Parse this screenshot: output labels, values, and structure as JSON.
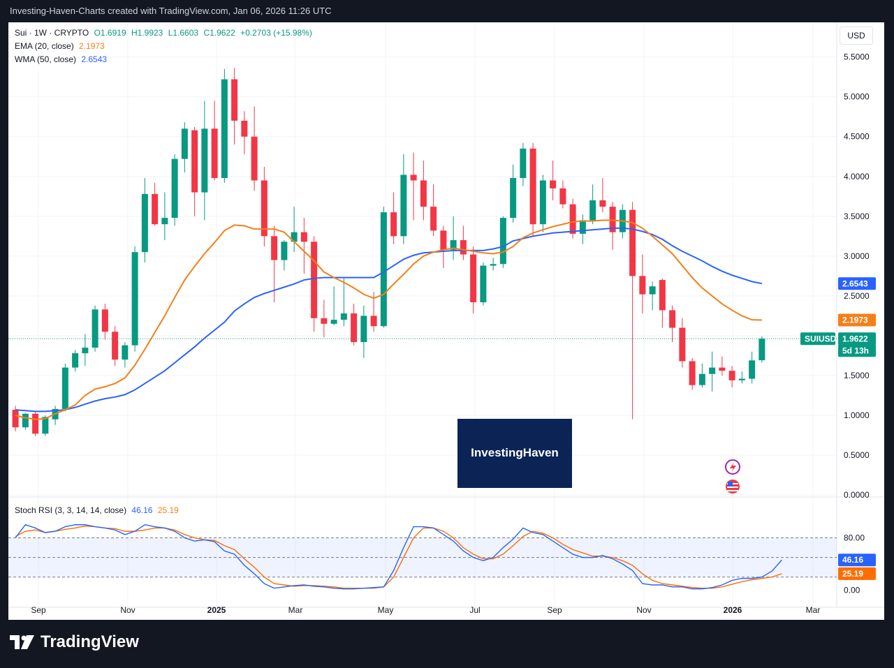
{
  "header": {
    "attribution": "Investing-Haven-Charts created with TradingView.com, Jan 06, 2026 11:26 UTC"
  },
  "legend": {
    "symbol": "Sui · 1W · CRYPTO",
    "open": "O1.6919",
    "high": "H1.9923",
    "low": "L1.6603",
    "close": "C1.9622",
    "change": "+0.2703 (+15.98%)",
    "ema_label": "EMA (20, close)",
    "ema_value": "2.1973",
    "wma_label": "WMA (50, close)",
    "wma_value": "2.6543",
    "stoch_label": "Stoch RSI (3, 3, 14, 14, close)",
    "stoch_k": "46.16",
    "stoch_d": "25.19"
  },
  "currency_button": "USD",
  "watermark": "InvestingHaven",
  "footer": {
    "brand": "TradingView"
  },
  "colors": {
    "up": "#089981",
    "down": "#f23645",
    "ema": "#f57f17",
    "wma": "#2962ff",
    "k": "#2962ff",
    "d": "#ff6d00",
    "logo_bg": "#0b2455"
  },
  "chart_data": {
    "type": "candlestick",
    "price_axis": {
      "ticks": [
        "0.0000",
        "0.5000",
        "1.0000",
        "1.5000",
        "2.0000",
        "2.5000",
        "3.0000",
        "3.5000",
        "4.0000",
        "4.5000",
        "5.0000",
        "5.5000"
      ],
      "ylim": [
        0,
        5.5
      ]
    },
    "price_badges": {
      "wma": "2.6543",
      "ema": "2.1973",
      "symbol": "SUIUSD",
      "last": "1.9622",
      "countdown": "5d 13h"
    },
    "time_axis": [
      "Sep",
      "Nov",
      "2025",
      "Mar",
      "May",
      "Jul",
      "Sep",
      "Nov",
      "2026",
      "Mar"
    ],
    "candles": [
      {
        "o": 1.07,
        "h": 1.12,
        "l": 0.8,
        "c": 0.85
      },
      {
        "o": 0.85,
        "h": 1.03,
        "l": 0.82,
        "c": 1.02
      },
      {
        "o": 1.02,
        "h": 1.05,
        "l": 0.74,
        "c": 0.77
      },
      {
        "o": 0.77,
        "h": 1.0,
        "l": 0.74,
        "c": 0.98
      },
      {
        "o": 0.95,
        "h": 1.12,
        "l": 0.88,
        "c": 1.08
      },
      {
        "o": 1.08,
        "h": 1.65,
        "l": 1.05,
        "c": 1.6
      },
      {
        "o": 1.6,
        "h": 1.82,
        "l": 1.55,
        "c": 1.78
      },
      {
        "o": 1.78,
        "h": 2.02,
        "l": 1.62,
        "c": 1.85
      },
      {
        "o": 1.85,
        "h": 2.38,
        "l": 1.8,
        "c": 2.33
      },
      {
        "o": 2.33,
        "h": 2.4,
        "l": 1.95,
        "c": 2.05
      },
      {
        "o": 2.05,
        "h": 2.12,
        "l": 1.62,
        "c": 1.7
      },
      {
        "o": 1.7,
        "h": 1.92,
        "l": 1.6,
        "c": 1.88
      },
      {
        "o": 1.88,
        "h": 3.12,
        "l": 1.8,
        "c": 3.05
      },
      {
        "o": 3.05,
        "h": 3.98,
        "l": 2.92,
        "c": 3.78
      },
      {
        "o": 3.78,
        "h": 3.92,
        "l": 3.38,
        "c": 3.4
      },
      {
        "o": 3.4,
        "h": 3.8,
        "l": 3.2,
        "c": 3.48
      },
      {
        "o": 3.48,
        "h": 4.28,
        "l": 3.38,
        "c": 4.22
      },
      {
        "o": 4.22,
        "h": 4.68,
        "l": 4.05,
        "c": 4.6
      },
      {
        "o": 4.58,
        "h": 4.62,
        "l": 3.5,
        "c": 3.8
      },
      {
        "o": 3.8,
        "h": 4.95,
        "l": 3.45,
        "c": 4.6
      },
      {
        "o": 4.6,
        "h": 4.95,
        "l": 3.95,
        "c": 3.98
      },
      {
        "o": 3.98,
        "h": 5.35,
        "l": 3.92,
        "c": 5.22
      },
      {
        "o": 5.22,
        "h": 5.36,
        "l": 4.4,
        "c": 4.7
      },
      {
        "o": 4.7,
        "h": 4.82,
        "l": 4.28,
        "c": 4.5
      },
      {
        "o": 4.5,
        "h": 4.88,
        "l": 3.82,
        "c": 3.95
      },
      {
        "o": 3.95,
        "h": 4.12,
        "l": 3.12,
        "c": 3.25
      },
      {
        "o": 3.25,
        "h": 3.38,
        "l": 2.42,
        "c": 2.95
      },
      {
        "o": 2.95,
        "h": 3.2,
        "l": 2.82,
        "c": 3.18
      },
      {
        "o": 3.18,
        "h": 3.62,
        "l": 3.05,
        "c": 3.3
      },
      {
        "o": 3.3,
        "h": 3.48,
        "l": 2.78,
        "c": 3.18
      },
      {
        "o": 3.18,
        "h": 3.25,
        "l": 2.05,
        "c": 2.22
      },
      {
        "o": 2.22,
        "h": 2.45,
        "l": 1.98,
        "c": 2.15
      },
      {
        "o": 2.15,
        "h": 2.62,
        "l": 2.13,
        "c": 2.2
      },
      {
        "o": 2.2,
        "h": 2.72,
        "l": 2.12,
        "c": 2.28
      },
      {
        "o": 2.28,
        "h": 2.4,
        "l": 1.88,
        "c": 1.92
      },
      {
        "o": 1.92,
        "h": 2.38,
        "l": 1.72,
        "c": 2.25
      },
      {
        "o": 2.25,
        "h": 2.55,
        "l": 2.05,
        "c": 2.12
      },
      {
        "o": 2.12,
        "h": 3.62,
        "l": 2.1,
        "c": 3.55
      },
      {
        "o": 3.55,
        "h": 3.8,
        "l": 3.15,
        "c": 3.25
      },
      {
        "o": 3.25,
        "h": 4.28,
        "l": 3.15,
        "c": 4.02
      },
      {
        "o": 4.02,
        "h": 4.3,
        "l": 3.45,
        "c": 3.95
      },
      {
        "o": 3.95,
        "h": 4.2,
        "l": 3.45,
        "c": 3.62
      },
      {
        "o": 3.62,
        "h": 3.9,
        "l": 3.25,
        "c": 3.32
      },
      {
        "o": 3.32,
        "h": 3.38,
        "l": 2.85,
        "c": 3.08
      },
      {
        "o": 3.08,
        "h": 3.5,
        "l": 2.95,
        "c": 3.2
      },
      {
        "o": 3.2,
        "h": 3.38,
        "l": 2.95,
        "c": 3.02
      },
      {
        "o": 3.02,
        "h": 3.12,
        "l": 2.28,
        "c": 2.42
      },
      {
        "o": 2.42,
        "h": 2.92,
        "l": 2.38,
        "c": 2.88
      },
      {
        "o": 2.88,
        "h": 2.98,
        "l": 2.82,
        "c": 2.9
      },
      {
        "o": 2.9,
        "h": 3.5,
        "l": 2.85,
        "c": 3.48
      },
      {
        "o": 3.48,
        "h": 4.15,
        "l": 3.42,
        "c": 3.98
      },
      {
        "o": 3.98,
        "h": 4.42,
        "l": 3.88,
        "c": 4.35
      },
      {
        "o": 4.35,
        "h": 4.42,
        "l": 3.25,
        "c": 3.4
      },
      {
        "o": 3.4,
        "h": 4.02,
        "l": 3.3,
        "c": 3.95
      },
      {
        "o": 3.95,
        "h": 4.2,
        "l": 3.7,
        "c": 3.85
      },
      {
        "o": 3.85,
        "h": 3.95,
        "l": 3.6,
        "c": 3.65
      },
      {
        "o": 3.65,
        "h": 3.72,
        "l": 3.22,
        "c": 3.28
      },
      {
        "o": 3.28,
        "h": 3.52,
        "l": 3.15,
        "c": 3.45
      },
      {
        "o": 3.45,
        "h": 3.9,
        "l": 3.4,
        "c": 3.7
      },
      {
        "o": 3.7,
        "h": 3.98,
        "l": 3.55,
        "c": 3.62
      },
      {
        "o": 3.62,
        "h": 3.68,
        "l": 3.08,
        "c": 3.3
      },
      {
        "o": 3.3,
        "h": 3.65,
        "l": 3.22,
        "c": 3.58
      },
      {
        "o": 3.58,
        "h": 3.68,
        "l": 0.95,
        "c": 2.75
      },
      {
        "o": 2.75,
        "h": 3.02,
        "l": 2.28,
        "c": 2.52
      },
      {
        "o": 2.52,
        "h": 2.68,
        "l": 2.32,
        "c": 2.62
      },
      {
        "o": 2.7,
        "h": 2.72,
        "l": 2.1,
        "c": 2.32
      },
      {
        "o": 2.32,
        "h": 2.38,
        "l": 1.92,
        "c": 2.1
      },
      {
        "o": 2.1,
        "h": 2.22,
        "l": 1.6,
        "c": 1.68
      },
      {
        "o": 1.68,
        "h": 1.72,
        "l": 1.32,
        "c": 1.38
      },
      {
        "o": 1.38,
        "h": 1.65,
        "l": 1.35,
        "c": 1.52
      },
      {
        "o": 1.52,
        "h": 1.8,
        "l": 1.3,
        "c": 1.6
      },
      {
        "o": 1.6,
        "h": 1.74,
        "l": 1.5,
        "c": 1.56
      },
      {
        "o": 1.56,
        "h": 1.62,
        "l": 1.35,
        "c": 1.44
      },
      {
        "o": 1.44,
        "h": 1.55,
        "l": 1.4,
        "c": 1.46
      },
      {
        "o": 1.46,
        "h": 1.8,
        "l": 1.4,
        "c": 1.69
      },
      {
        "o": 1.6919,
        "h": 1.9923,
        "l": 1.6603,
        "c": 1.9622
      }
    ],
    "ema": [
      1.0,
      0.97,
      0.95,
      0.96,
      1.02,
      1.07,
      1.13,
      1.25,
      1.33,
      1.36,
      1.4,
      1.47,
      1.63,
      1.83,
      2.04,
      2.25,
      2.48,
      2.7,
      2.87,
      3.03,
      3.17,
      3.32,
      3.39,
      3.38,
      3.34,
      3.34,
      3.34,
      3.3,
      3.18,
      3.06,
      2.94,
      2.8,
      2.73,
      2.67,
      2.6,
      2.52,
      2.47,
      2.52,
      2.65,
      2.77,
      2.9,
      3.0,
      3.05,
      3.08,
      3.1,
      3.08,
      3.06,
      3.04,
      3.03,
      3.05,
      3.12,
      3.23,
      3.29,
      3.33,
      3.37,
      3.4,
      3.43,
      3.44,
      3.44,
      3.45,
      3.45,
      3.44,
      3.42,
      3.35,
      3.25,
      3.14,
      3.03,
      2.88,
      2.73,
      2.6,
      2.5,
      2.4,
      2.32,
      2.25,
      2.2,
      2.1973
    ],
    "wma": [
      1.07,
      1.06,
      1.05,
      1.05,
      1.06,
      1.07,
      1.1,
      1.14,
      1.18,
      1.21,
      1.23,
      1.26,
      1.32,
      1.4,
      1.48,
      1.56,
      1.66,
      1.76,
      1.86,
      1.97,
      2.07,
      2.17,
      2.31,
      2.4,
      2.48,
      2.53,
      2.57,
      2.61,
      2.65,
      2.7,
      2.72,
      2.73,
      2.73,
      2.73,
      2.73,
      2.73,
      2.73,
      2.8,
      2.88,
      2.96,
      3.01,
      3.04,
      3.05,
      3.06,
      3.07,
      3.07,
      3.07,
      3.07,
      3.09,
      3.12,
      3.19,
      3.22,
      3.25,
      3.27,
      3.29,
      3.3,
      3.31,
      3.32,
      3.33,
      3.34,
      3.35,
      3.35,
      3.34,
      3.31,
      3.27,
      3.21,
      3.13,
      3.06,
      3.0,
      2.94,
      2.87,
      2.81,
      2.76,
      2.72,
      2.68,
      2.6543
    ],
    "stoch_rsi": {
      "axis": [
        "0.00",
        "20.00",
        "80.00"
      ],
      "k_value": "46.16",
      "d_value": "25.19",
      "k": [
        80,
        100,
        95,
        88,
        90,
        97,
        100,
        100,
        97,
        95,
        92,
        85,
        90,
        100,
        97,
        95,
        90,
        80,
        75,
        77,
        74,
        60,
        55,
        38,
        25,
        10,
        3,
        5,
        7,
        8,
        6,
        5,
        3,
        2,
        2,
        3,
        4,
        5,
        30,
        65,
        97,
        97,
        95,
        85,
        75,
        60,
        50,
        45,
        50,
        65,
        78,
        95,
        88,
        85,
        75,
        65,
        55,
        50,
        50,
        53,
        48,
        40,
        30,
        10,
        8,
        8,
        5,
        5,
        2,
        2,
        4,
        8,
        15,
        18,
        18,
        20,
        29,
        46.16
      ],
      "d": [
        82,
        90,
        92,
        88,
        90,
        93,
        95,
        98,
        97,
        95,
        94,
        90,
        90,
        92,
        95,
        95,
        92,
        85,
        80,
        77,
        76,
        68,
        62,
        48,
        35,
        20,
        10,
        8,
        6,
        7,
        7,
        6,
        5,
        3,
        3,
        3,
        3,
        5,
        20,
        50,
        80,
        95,
        95,
        90,
        80,
        65,
        55,
        48,
        48,
        55,
        68,
        82,
        90,
        87,
        80,
        70,
        62,
        57,
        52,
        52,
        50,
        45,
        38,
        25,
        15,
        10,
        8,
        6,
        4,
        3,
        3,
        5,
        9,
        13,
        16,
        18,
        20,
        25.19
      ]
    }
  }
}
